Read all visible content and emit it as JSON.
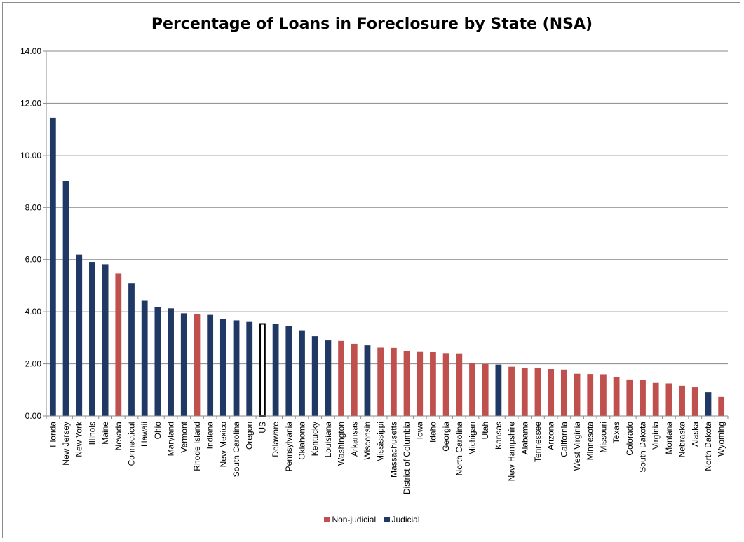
{
  "chart_data": {
    "type": "bar",
    "title": "Percentage of Loans in Foreclosure by State (NSA)",
    "xlabel": "",
    "ylabel": "",
    "ylim": [
      0,
      14
    ],
    "yticks": [
      "0.00",
      "2.00",
      "4.00",
      "6.00",
      "8.00",
      "10.00",
      "12.00",
      "14.00"
    ],
    "grid": true,
    "legend_position": "bottom",
    "colors": {
      "Non-judicial": "#c0504d",
      "Judicial": "#1f3864",
      "US": "#ffffff"
    },
    "legend": [
      "Non-judicial",
      "Judicial"
    ],
    "categories": [
      "Florida",
      "New Jersey",
      "New York",
      "Illinois",
      "Maine",
      "Nevada",
      "Connecticut",
      "Hawaii",
      "Ohio",
      "Maryland",
      "Vermont",
      "Rhode Island",
      "Indiana",
      "New Mexico",
      "South Carolina",
      "Oregon",
      "US",
      "Delaware",
      "Pennsylvania",
      "Oklahoma",
      "Kentucky",
      "Louisiana",
      "Washington",
      "Arkansas",
      "Wisconsin",
      "Mississippi",
      "Massachusetts",
      "District of Columbia",
      "Iowa",
      "Idaho",
      "Georgia",
      "North Carolina",
      "Michigan",
      "Utah",
      "Kansas",
      "New Hampshire",
      "Alabama",
      "Tennessee",
      "Arizona",
      "California",
      "West Virginia",
      "Minnesota",
      "Missouri",
      "Texas",
      "Colorado",
      "South Dakota",
      "Virginia",
      "Montana",
      "Nebraska",
      "Alaska",
      "North Dakota",
      "Wyoming"
    ],
    "values": [
      11.45,
      9.02,
      6.19,
      5.91,
      5.82,
      5.47,
      5.1,
      4.42,
      4.18,
      4.13,
      3.94,
      3.91,
      3.88,
      3.73,
      3.67,
      3.61,
      3.56,
      3.53,
      3.44,
      3.29,
      3.06,
      2.9,
      2.88,
      2.77,
      2.71,
      2.62,
      2.61,
      2.5,
      2.48,
      2.45,
      2.41,
      2.4,
      2.04,
      1.99,
      1.97,
      1.89,
      1.85,
      1.84,
      1.8,
      1.78,
      1.62,
      1.61,
      1.6,
      1.49,
      1.4,
      1.37,
      1.27,
      1.25,
      1.16,
      1.1,
      0.91,
      0.73
    ],
    "groups": [
      "Judicial",
      "Judicial",
      "Judicial",
      "Judicial",
      "Judicial",
      "Non-judicial",
      "Judicial",
      "Judicial",
      "Judicial",
      "Judicial",
      "Judicial",
      "Non-judicial",
      "Judicial",
      "Judicial",
      "Judicial",
      "Judicial",
      "US",
      "Judicial",
      "Judicial",
      "Judicial",
      "Judicial",
      "Judicial",
      "Non-judicial",
      "Non-judicial",
      "Judicial",
      "Non-judicial",
      "Non-judicial",
      "Non-judicial",
      "Non-judicial",
      "Non-judicial",
      "Non-judicial",
      "Non-judicial",
      "Non-judicial",
      "Non-judicial",
      "Judicial",
      "Non-judicial",
      "Non-judicial",
      "Non-judicial",
      "Non-judicial",
      "Non-judicial",
      "Non-judicial",
      "Non-judicial",
      "Non-judicial",
      "Non-judicial",
      "Non-judicial",
      "Non-judicial",
      "Non-judicial",
      "Non-judicial",
      "Non-judicial",
      "Non-judicial",
      "Judicial",
      "Non-judicial"
    ]
  }
}
